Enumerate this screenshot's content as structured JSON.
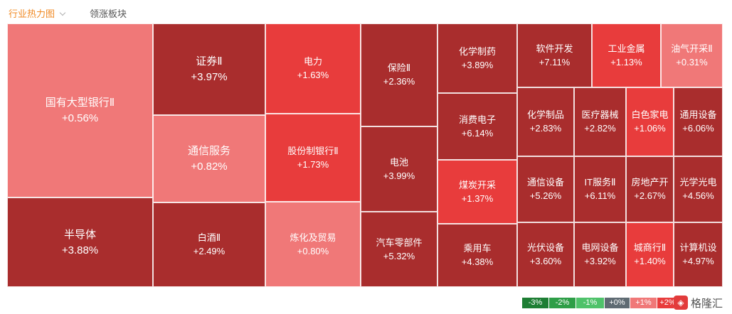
{
  "tabs": {
    "heatmap": "行业热力图",
    "leaders": "领涨板块"
  },
  "cells": [
    {
      "id": "c1",
      "name": "国有大型银行Ⅱ",
      "change": "+0.56%",
      "color": "#f07878"
    },
    {
      "id": "c2",
      "name": "半导体",
      "change": "+3.88%",
      "color": "#a92d2d"
    },
    {
      "id": "c3",
      "name": "证券Ⅱ",
      "change": "+3.97%",
      "color": "#a92d2d"
    },
    {
      "id": "c4",
      "name": "通信服务",
      "change": "+0.82%",
      "color": "#f07878"
    },
    {
      "id": "c5",
      "name": "白酒Ⅱ",
      "change": "+2.49%",
      "color": "#a92d2d"
    },
    {
      "id": "c6",
      "name": "电力",
      "change": "+1.63%",
      "color": "#e83c3c"
    },
    {
      "id": "c7",
      "name": "股份制银行Ⅱ",
      "change": "+1.73%",
      "color": "#e83c3c"
    },
    {
      "id": "c8",
      "name": "炼化及贸易",
      "change": "+0.80%",
      "color": "#f07878"
    },
    {
      "id": "c9",
      "name": "保险Ⅱ",
      "change": "+2.36%",
      "color": "#a92d2d"
    },
    {
      "id": "c10",
      "name": "电池",
      "change": "+3.99%",
      "color": "#a92d2d"
    },
    {
      "id": "c11",
      "name": "汽车零部件",
      "change": "+5.32%",
      "color": "#a92d2d"
    },
    {
      "id": "c12",
      "name": "化学制药",
      "change": "+3.89%",
      "color": "#a92d2d"
    },
    {
      "id": "c13",
      "name": "消费电子",
      "change": "+6.14%",
      "color": "#a92d2d"
    },
    {
      "id": "c14",
      "name": "煤炭开采",
      "change": "+1.37%",
      "color": "#e83c3c"
    },
    {
      "id": "c15",
      "name": "乘用车",
      "change": "+4.38%",
      "color": "#a92d2d"
    },
    {
      "id": "c16",
      "name": "软件开发",
      "change": "+7.11%",
      "color": "#a92d2d"
    },
    {
      "id": "c17",
      "name": "工业金属",
      "change": "+1.13%",
      "color": "#e83c3c"
    },
    {
      "id": "c18",
      "name": "油气开采Ⅱ",
      "change": "+0.31%",
      "color": "#f07878"
    },
    {
      "id": "c19",
      "name": "化学制品",
      "change": "+2.83%",
      "color": "#a92d2d"
    },
    {
      "id": "c20",
      "name": "医疗器械",
      "change": "+2.82%",
      "color": "#a92d2d"
    },
    {
      "id": "c21",
      "name": "白色家电",
      "change": "+1.06%",
      "color": "#e83c3c"
    },
    {
      "id": "c22",
      "name": "通用设备",
      "change": "+6.06%",
      "color": "#a92d2d"
    },
    {
      "id": "c23",
      "name": "通信设备",
      "change": "+5.26%",
      "color": "#a92d2d"
    },
    {
      "id": "c24",
      "name": "IT服务Ⅱ",
      "change": "+6.11%",
      "color": "#a92d2d"
    },
    {
      "id": "c25",
      "name": "房地产开",
      "change": "+2.67%",
      "color": "#a92d2d"
    },
    {
      "id": "c26",
      "name": "光学光电",
      "change": "+4.56%",
      "color": "#a92d2d"
    },
    {
      "id": "c27",
      "name": "光伏设备",
      "change": "+3.60%",
      "color": "#a92d2d"
    },
    {
      "id": "c28",
      "name": "电网设备",
      "change": "+3.92%",
      "color": "#a92d2d"
    },
    {
      "id": "c29",
      "name": "城商行Ⅱ",
      "change": "+1.40%",
      "color": "#e83c3c"
    },
    {
      "id": "c30",
      "name": "计算机设",
      "change": "+4.97%",
      "color": "#a92d2d"
    }
  ],
  "legend": [
    {
      "label": "-3%",
      "color": "#1e7e34"
    },
    {
      "label": "-2%",
      "color": "#2e9e47"
    },
    {
      "label": "-1%",
      "color": "#4fc26a"
    },
    {
      "label": "+0%",
      "color": "#5f6b73"
    },
    {
      "label": "+1%",
      "color": "#f07878"
    },
    {
      "label": "+2%",
      "color": "#e83c3c"
    }
  ],
  "watermark": {
    "icon": "logo-icon",
    "text": "格隆汇"
  }
}
